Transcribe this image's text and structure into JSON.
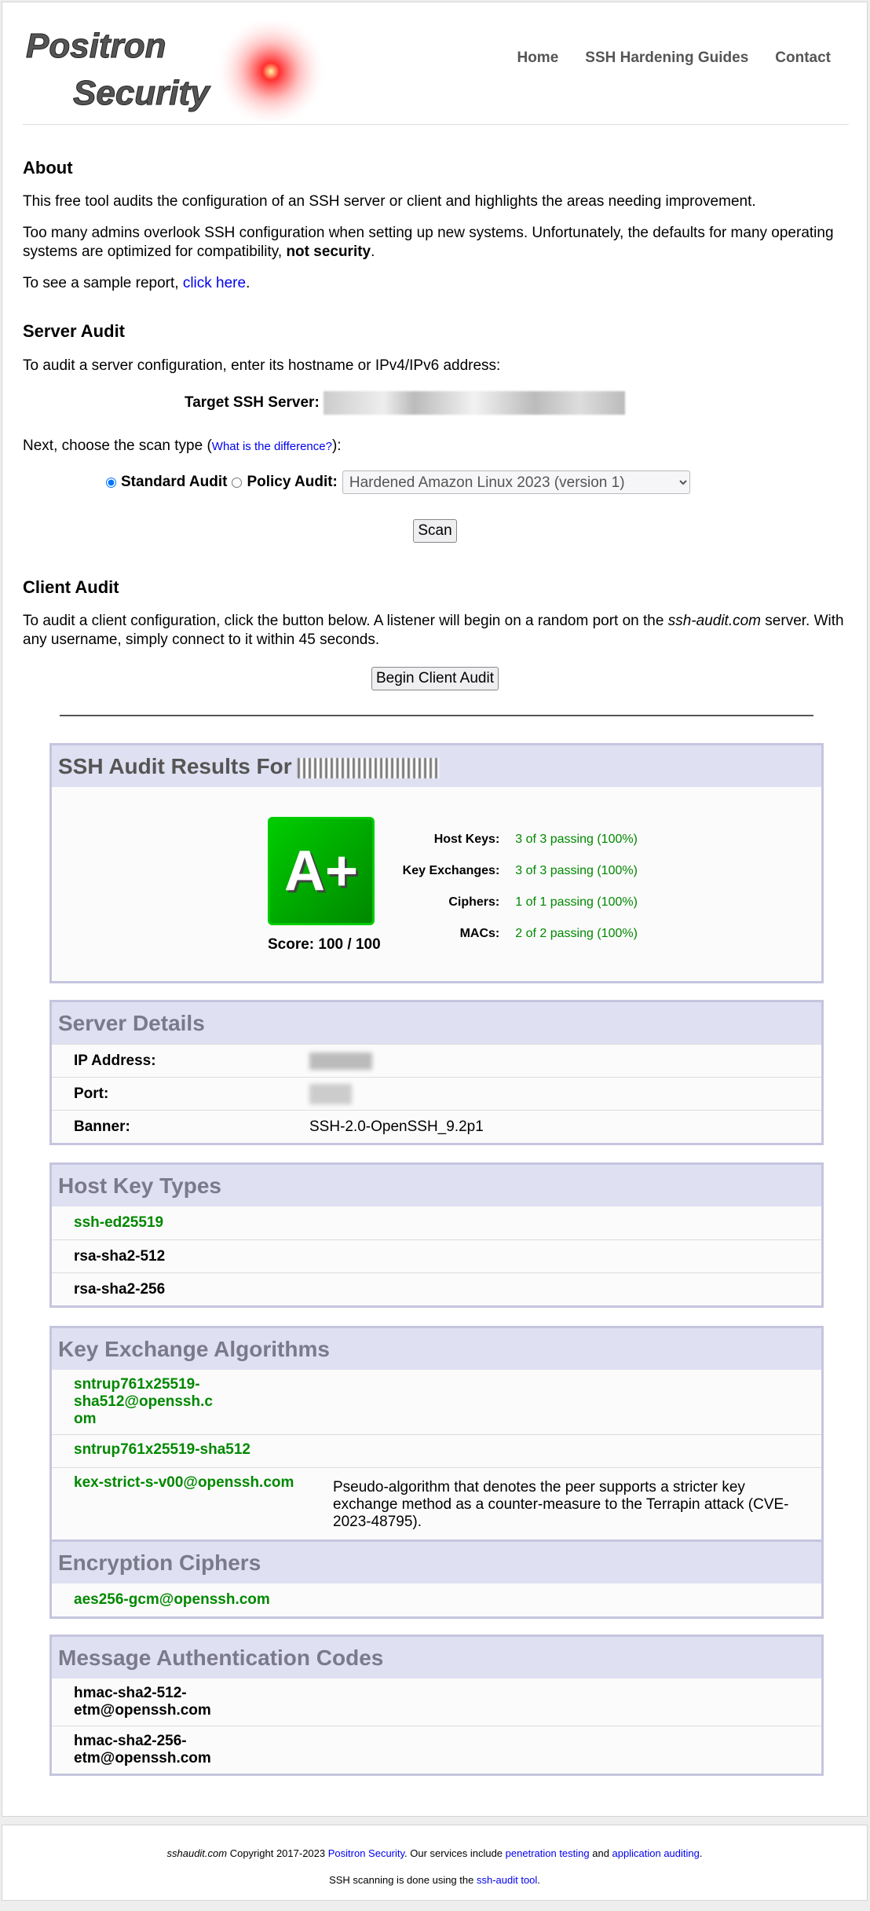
{
  "brand": {
    "logo_text_1": "Positron",
    "logo_text_2": "Security"
  },
  "nav": [
    "Home",
    "SSH Hardening Guides",
    "Contact"
  ],
  "about": {
    "title": "About",
    "p1": "This free tool audits the configuration of an SSH server or client and highlights the areas needing improvement.",
    "p2": "Too many admins overlook SSH configuration when setting up new systems. Unfortunately, the defaults for many operating systems are optimized for compatibility, ",
    "p2_bold": "not security",
    "p2_end": ".",
    "p3": "To see a sample report, ",
    "p3_link": "click here",
    "p3_end": "."
  },
  "server_audit": {
    "title": "Server Audit",
    "intro": "To audit a server configuration, enter its hostname or IPv4/IPv6 address:",
    "target_label": "Target SSH Server:",
    "scan_type_text": "Next, choose the scan type (",
    "scan_type_link": "What is the difference?",
    "scan_type_end": "):",
    "standard_label": "Standard Audit",
    "policy_label": "Policy Audit:",
    "policy_selected": "Hardened Amazon Linux 2023 (version 1)",
    "scan_button": "Scan"
  },
  "client_audit": {
    "title": "Client Audit",
    "p_start": "To audit a client configuration, click the button below. A listener will begin on a random port on the ",
    "p_em": "ssh-audit.com",
    "p_end": " server. With any username, simply connect to it within 45 seconds.",
    "button": "Begin Client Audit"
  },
  "results": {
    "title": "SSH Audit Results For",
    "grade": "A+",
    "score": "Score: 100 / 100",
    "grade_color": "#00aa00",
    "summary": [
      {
        "label": "Host Keys:",
        "value": "3 of 3 passing (100%)"
      },
      {
        "label": "Key Exchanges:",
        "value": "3 of 3 passing (100%)"
      },
      {
        "label": "Ciphers:",
        "value": "1 of 1 passing (100%)"
      },
      {
        "label": "MACs:",
        "value": "2 of 2 passing (100%)"
      }
    ]
  },
  "server_details": {
    "title": "Server Details",
    "rows": [
      {
        "label": "IP Address:"
      },
      {
        "label": "Port:"
      },
      {
        "label": "Banner:",
        "value": "SSH-2.0-OpenSSH_9.2p1"
      }
    ]
  },
  "host_keys": {
    "title": "Host Key Types",
    "items": [
      {
        "name": "ssh-ed25519",
        "status": "good"
      },
      {
        "name": "rsa-sha2-512"
      },
      {
        "name": "rsa-sha2-256"
      }
    ]
  },
  "kex": {
    "title": "Key Exchange Algorithms",
    "items": [
      {
        "name": "sntrup761x25519-sha512@openssh.com",
        "status": "good"
      },
      {
        "name": "sntrup761x25519-sha512",
        "status": "good"
      },
      {
        "name": "kex-strict-s-v00@openssh.com",
        "status": "good",
        "note": "Pseudo-algorithm that denotes the peer supports a stricter key exchange method as a counter-measure to the Terrapin attack (CVE-2023-48795)."
      }
    ]
  },
  "ciphers": {
    "title": "Encryption Ciphers",
    "items": [
      {
        "name": "aes256-gcm@openssh.com",
        "status": "good"
      }
    ]
  },
  "macs": {
    "title": "Message Authentication Codes",
    "items": [
      {
        "name": "hmac-sha2-512-etm@openssh.com"
      },
      {
        "name": "hmac-sha2-256-etm@openssh.com"
      }
    ]
  },
  "footer": {
    "site": "sshaudit.com",
    "copyright": " Copyright 2017-2023 ",
    "company": "Positron Security",
    "services": ". Our services include ",
    "pentest": "penetration testing",
    "and": " and ",
    "appaudit": "application auditing",
    "end": ".",
    "line2": "SSH scanning is done using the ",
    "tool": "ssh-audit tool",
    "line2_end": "."
  }
}
